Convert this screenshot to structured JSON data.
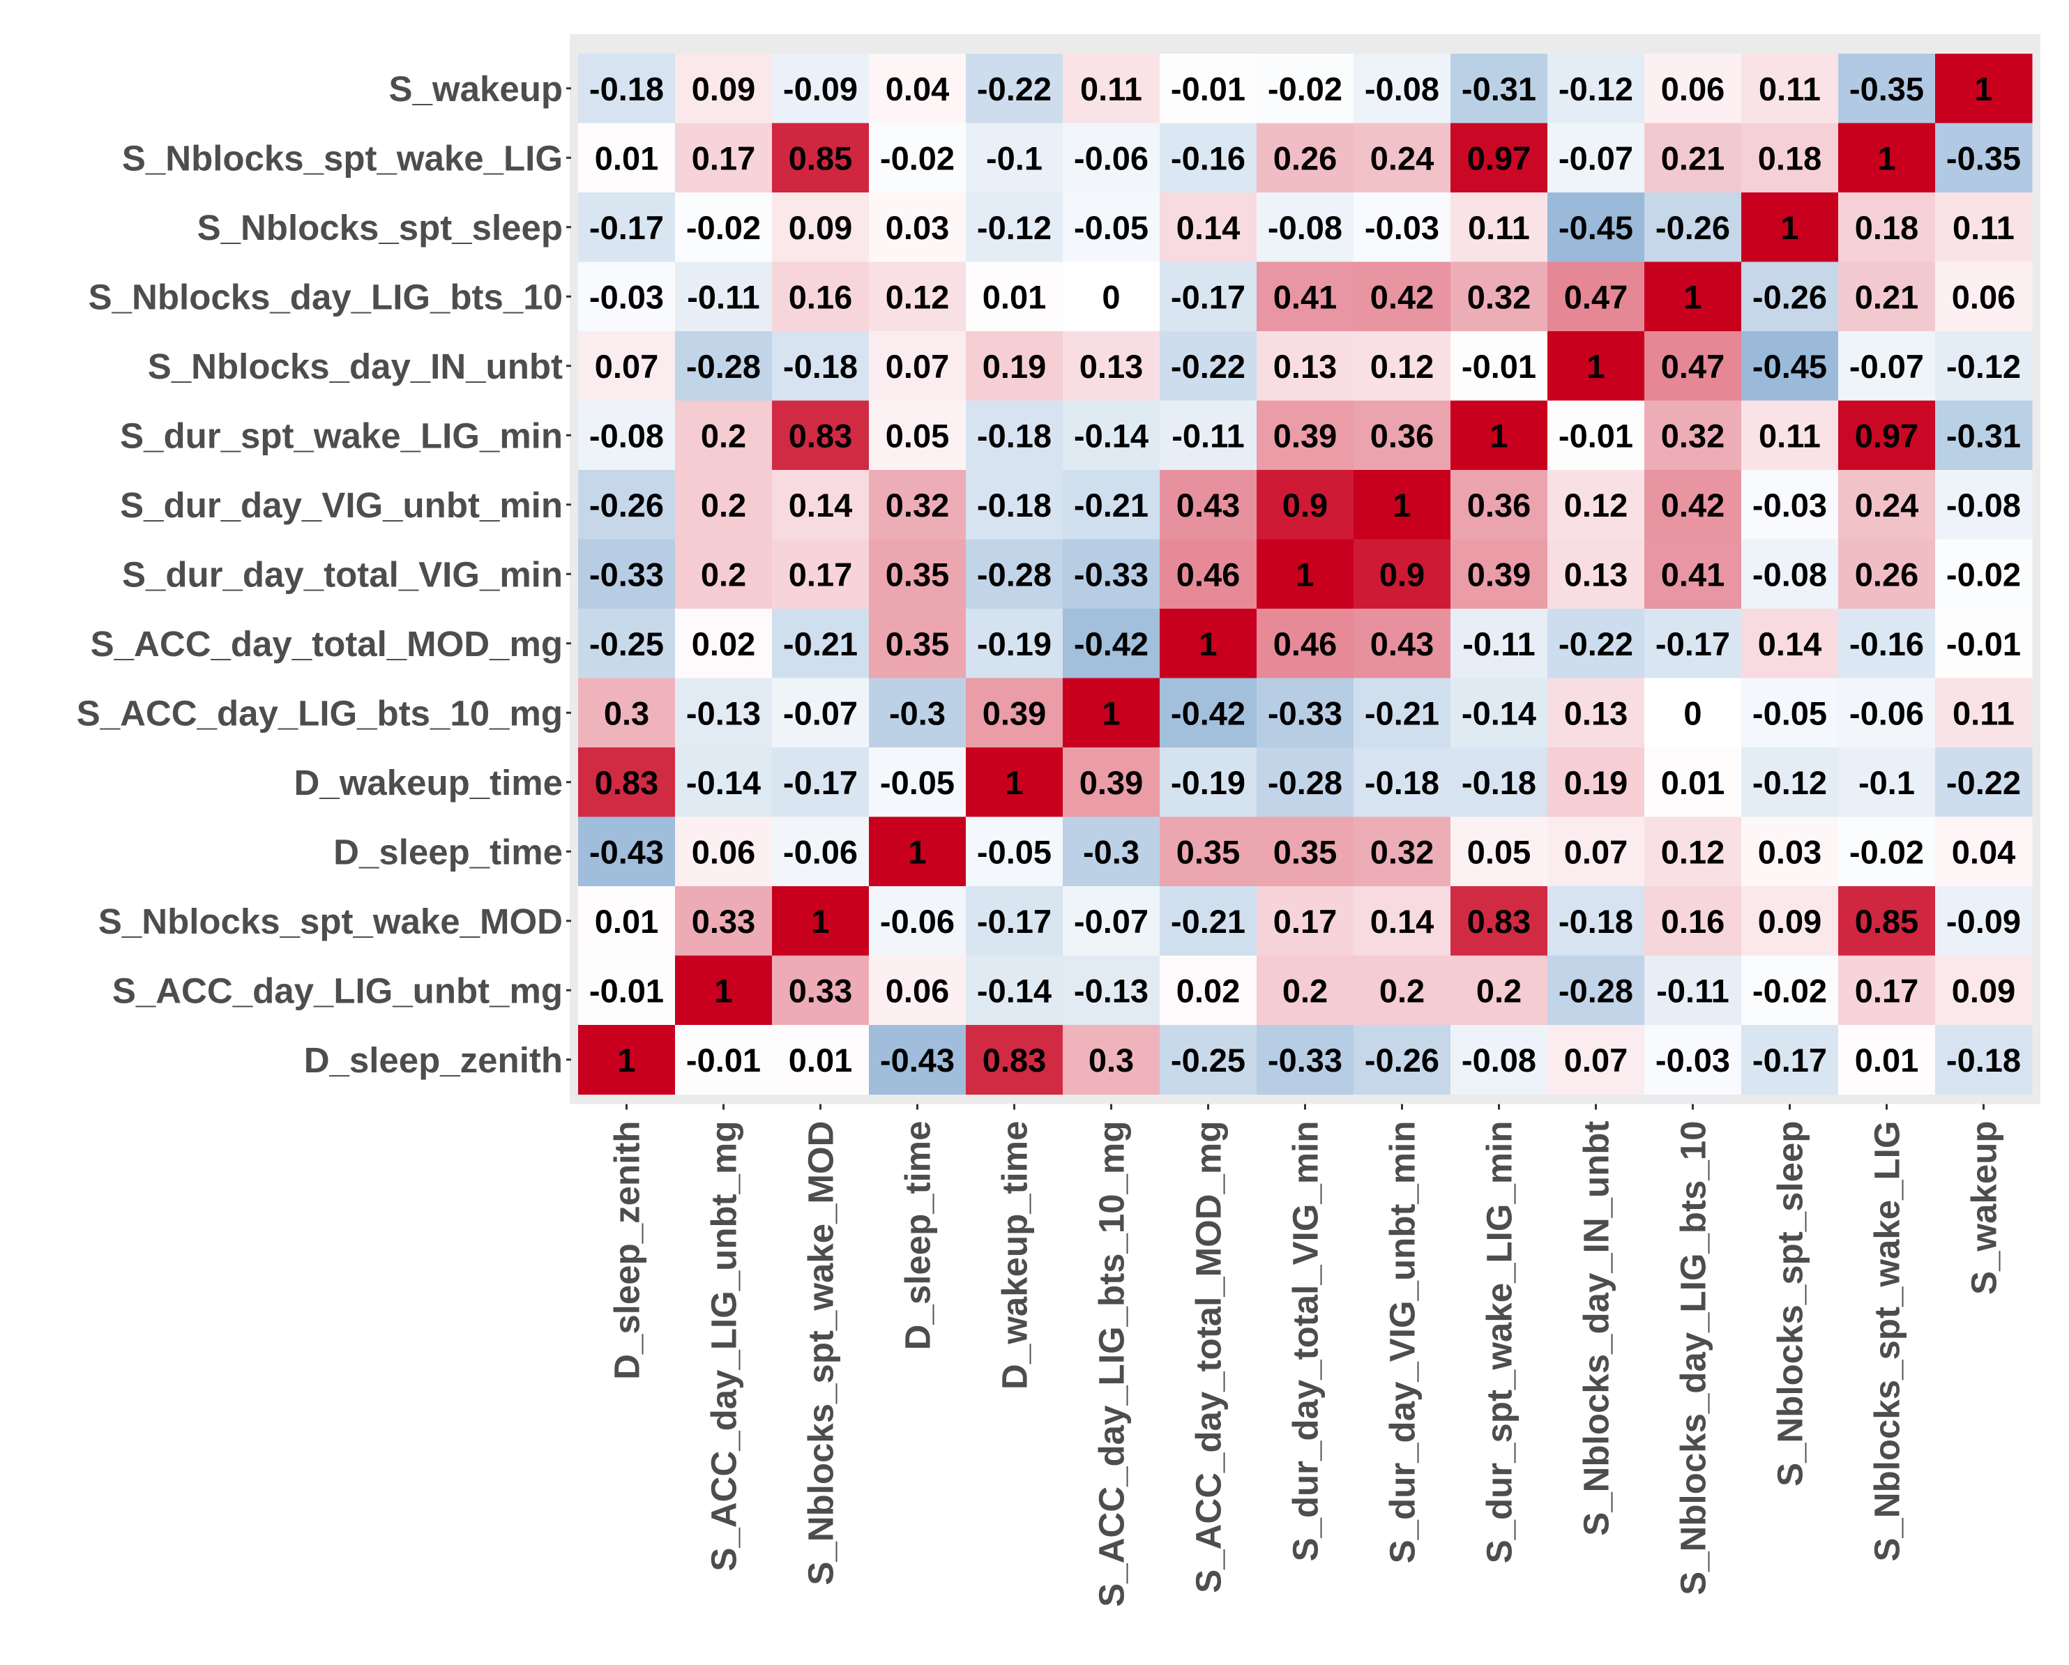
{
  "chart_data": {
    "type": "heatmap",
    "title": "",
    "xlabel": "",
    "ylabel": "",
    "value_range": [
      -1,
      1
    ],
    "colors": {
      "negative": "#2166ac",
      "neutral": "#ffffff",
      "positive": "#c8001e",
      "panel_background": "#ebebeb",
      "label_text": "#4d4d4d",
      "cell_text": "#000000"
    },
    "x_labels": [
      "D_sleep_zenith",
      "S_ACC_day_LIG_unbt_mg",
      "S_Nblocks_spt_wake_MOD",
      "D_sleep_time",
      "D_wakeup_time",
      "S_ACC_day_LIG_bts_10_mg",
      "S_ACC_day_total_MOD_mg",
      "S_dur_day_total_VIG_min",
      "S_dur_day_VIG_unbt_min",
      "S_dur_spt_wake_LIG_min",
      "S_Nblocks_day_IN_unbt",
      "S_Nblocks_day_LIG_bts_10",
      "S_Nblocks_spt_sleep",
      "S_Nblocks_spt_wake_LIG",
      "S_wakeup"
    ],
    "y_labels": [
      "S_wakeup",
      "S_Nblocks_spt_wake_LIG",
      "S_Nblocks_spt_sleep",
      "S_Nblocks_day_LIG_bts_10",
      "S_Nblocks_day_IN_unbt",
      "S_dur_spt_wake_LIG_min",
      "S_dur_day_VIG_unbt_min",
      "S_dur_day_total_VIG_min",
      "S_ACC_day_total_MOD_mg",
      "S_ACC_day_LIG_bts_10_mg",
      "D_wakeup_time",
      "D_sleep_time",
      "S_Nblocks_spt_wake_MOD",
      "S_ACC_day_LIG_unbt_mg",
      "D_sleep_zenith"
    ],
    "cells": [
      [
        "-0.18",
        "0.09",
        "-0.09",
        "0.04",
        "-0.22",
        "0.11",
        "-0.01",
        "-0.02",
        "-0.08",
        "-0.31",
        "-0.12",
        "0.06",
        "0.11",
        "-0.35",
        "1"
      ],
      [
        "0.01",
        "0.17",
        "0.85",
        "-0.02",
        "-0.1",
        "-0.06",
        "-0.16",
        "0.26",
        "0.24",
        "0.97",
        "-0.07",
        "0.21",
        "0.18",
        "1",
        "-0.35"
      ],
      [
        "-0.17",
        "-0.02",
        "0.09",
        "0.03",
        "-0.12",
        "-0.05",
        "0.14",
        "-0.08",
        "-0.03",
        "0.11",
        "-0.45",
        "-0.26",
        "1",
        "0.18",
        "0.11"
      ],
      [
        "-0.03",
        "-0.11",
        "0.16",
        "0.12",
        "0.01",
        "0",
        "-0.17",
        "0.41",
        "0.42",
        "0.32",
        "0.47",
        "1",
        "-0.26",
        "0.21",
        "0.06"
      ],
      [
        "0.07",
        "-0.28",
        "-0.18",
        "0.07",
        "0.19",
        "0.13",
        "-0.22",
        "0.13",
        "0.12",
        "-0.01",
        "1",
        "0.47",
        "-0.45",
        "-0.07",
        "-0.12"
      ],
      [
        "-0.08",
        "0.2",
        "0.83",
        "0.05",
        "-0.18",
        "-0.14",
        "-0.11",
        "0.39",
        "0.36",
        "1",
        "-0.01",
        "0.32",
        "0.11",
        "0.97",
        "-0.31"
      ],
      [
        "-0.26",
        "0.2",
        "0.14",
        "0.32",
        "-0.18",
        "-0.21",
        "0.43",
        "0.9",
        "1",
        "0.36",
        "0.12",
        "0.42",
        "-0.03",
        "0.24",
        "-0.08"
      ],
      [
        "-0.33",
        "0.2",
        "0.17",
        "0.35",
        "-0.28",
        "-0.33",
        "0.46",
        "1",
        "0.9",
        "0.39",
        "0.13",
        "0.41",
        "-0.08",
        "0.26",
        "-0.02"
      ],
      [
        "-0.25",
        "0.02",
        "-0.21",
        "0.35",
        "-0.19",
        "-0.42",
        "1",
        "0.46",
        "0.43",
        "-0.11",
        "-0.22",
        "-0.17",
        "0.14",
        "-0.16",
        "-0.01"
      ],
      [
        "0.3",
        "-0.13",
        "-0.07",
        "-0.3",
        "0.39",
        "1",
        "-0.42",
        "-0.33",
        "-0.21",
        "-0.14",
        "0.13",
        "0",
        "-0.05",
        "-0.06",
        "0.11"
      ],
      [
        "0.83",
        "-0.14",
        "-0.17",
        "-0.05",
        "1",
        "0.39",
        "-0.19",
        "-0.28",
        "-0.18",
        "-0.18",
        "0.19",
        "0.01",
        "-0.12",
        "-0.1",
        "-0.22"
      ],
      [
        "-0.43",
        "0.06",
        "-0.06",
        "1",
        "-0.05",
        "-0.3",
        "0.35",
        "0.35",
        "0.32",
        "0.05",
        "0.07",
        "0.12",
        "0.03",
        "-0.02",
        "0.04"
      ],
      [
        "0.01",
        "0.33",
        "1",
        "-0.06",
        "-0.17",
        "-0.07",
        "-0.21",
        "0.17",
        "0.14",
        "0.83",
        "-0.18",
        "0.16",
        "0.09",
        "0.85",
        "-0.09"
      ],
      [
        "-0.01",
        "1",
        "0.33",
        "0.06",
        "-0.14",
        "-0.13",
        "0.02",
        "0.2",
        "0.2",
        "0.2",
        "-0.28",
        "-0.11",
        "-0.02",
        "0.17",
        "0.09"
      ],
      [
        "1",
        "-0.01",
        "0.01",
        "-0.43",
        "0.83",
        "0.3",
        "-0.25",
        "-0.33",
        "-0.26",
        "-0.08",
        "0.07",
        "-0.03",
        "-0.17",
        "0.01",
        "-0.18"
      ]
    ]
  }
}
